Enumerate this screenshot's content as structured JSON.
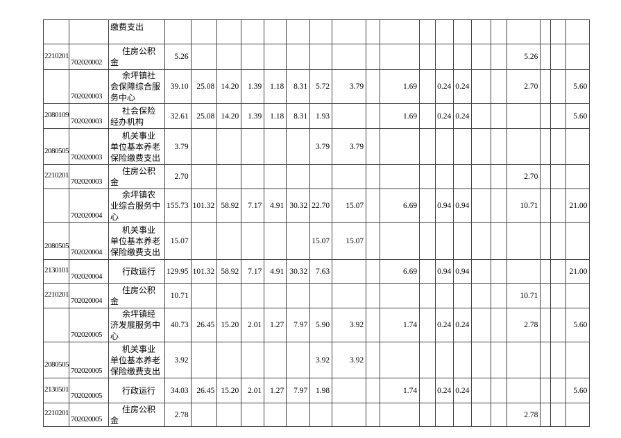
{
  "colors": {
    "page_bg": "#ffffff",
    "border": "#3f3f3f",
    "text": "#000000"
  },
  "table": {
    "rows": [
      {
        "func_code": "",
        "org_code": "",
        "name": "缴费支出",
        "continued": true,
        "values": [
          "",
          "",
          "",
          "",
          "",
          "",
          "",
          "",
          "",
          "",
          "",
          "",
          "",
          "",
          "",
          "",
          "",
          "",
          ""
        ]
      },
      {
        "func_code": "2210201",
        "org_code": "702020002",
        "name": "住房公积金",
        "continued": false,
        "values": [
          "5.26",
          "",
          "",
          "",
          "",
          "",
          "",
          "",
          "",
          "",
          "",
          "",
          "",
          "",
          "",
          "5.26",
          "",
          "",
          ""
        ]
      },
      {
        "func_code": "",
        "org_code": "702020003",
        "name": "余坪镇社会保障综合服务中心",
        "continued": false,
        "values": [
          "39.10",
          "25.08",
          "14.20",
          "1.39",
          "1.18",
          "8.31",
          "5.72",
          "3.79",
          "",
          "1.69",
          "",
          "0.24",
          "0.24",
          "",
          "",
          "2.70",
          "",
          "",
          "5.60"
        ]
      },
      {
        "func_code": "2080109",
        "org_code": "702020003",
        "name": "社会保险经办机构",
        "continued": false,
        "values": [
          "32.61",
          "25.08",
          "14.20",
          "1.39",
          "1.18",
          "8.31",
          "1.93",
          "",
          "",
          "1.69",
          "",
          "0.24",
          "0.24",
          "",
          "",
          "",
          "",
          "",
          "5.60"
        ]
      },
      {
        "func_code": "2080505",
        "org_code": "702020003",
        "name": "机关事业单位基本养老保险缴费支出",
        "continued": false,
        "values": [
          "3.79",
          "",
          "",
          "",
          "",
          "",
          "3.79",
          "3.79",
          "",
          "",
          "",
          "",
          "",
          "",
          "",
          "",
          "",
          "",
          ""
        ]
      },
      {
        "func_code": "2210201",
        "org_code": "702020003",
        "name": "住房公积金",
        "continued": false,
        "values": [
          "2.70",
          "",
          "",
          "",
          "",
          "",
          "",
          "",
          "",
          "",
          "",
          "",
          "",
          "",
          "",
          "2.70",
          "",
          "",
          ""
        ]
      },
      {
        "func_code": "",
        "org_code": "702020004",
        "name": "余坪镇农业综合服务中心",
        "continued": false,
        "values": [
          "155.73",
          "101.32",
          "58.92",
          "7.17",
          "4.91",
          "30.32",
          "22.70",
          "15.07",
          "",
          "6.69",
          "",
          "0.94",
          "0.94",
          "",
          "",
          "10.71",
          "",
          "",
          "21.00"
        ]
      },
      {
        "func_code": "2080505",
        "org_code": "702020004",
        "name": "机关事业单位基本养老保险缴费支出",
        "continued": false,
        "values": [
          "15.07",
          "",
          "",
          "",
          "",
          "",
          "15.07",
          "15.07",
          "",
          "",
          "",
          "",
          "",
          "",
          "",
          "",
          "",
          "",
          ""
        ]
      },
      {
        "func_code": "2130101",
        "org_code": "702020004",
        "name": "行政运行",
        "continued": false,
        "values": [
          "129.95",
          "101.32",
          "58.92",
          "7.17",
          "4.91",
          "30.32",
          "7.63",
          "",
          "",
          "6.69",
          "",
          "0.94",
          "0.94",
          "",
          "",
          "",
          "",
          "",
          "21.00"
        ]
      },
      {
        "func_code": "2210201",
        "org_code": "702020004",
        "name": "住房公积金",
        "continued": false,
        "values": [
          "10.71",
          "",
          "",
          "",
          "",
          "",
          "",
          "",
          "",
          "",
          "",
          "",
          "",
          "",
          "",
          "10.71",
          "",
          "",
          ""
        ]
      },
      {
        "func_code": "",
        "org_code": "702020005",
        "name": "余坪镇经济发展服务中心",
        "continued": false,
        "values": [
          "40.73",
          "26.45",
          "15.20",
          "2.01",
          "1.27",
          "7.97",
          "5.90",
          "3.92",
          "",
          "1.74",
          "",
          "0.24",
          "0.24",
          "",
          "",
          "2.78",
          "",
          "",
          "5.60"
        ]
      },
      {
        "func_code": "2080505",
        "org_code": "702020005",
        "name": "机关事业单位基本养老保险缴费支出",
        "continued": false,
        "values": [
          "3.92",
          "",
          "",
          "",
          "",
          "",
          "3.92",
          "3.92",
          "",
          "",
          "",
          "",
          "",
          "",
          "",
          "",
          "",
          "",
          ""
        ]
      },
      {
        "func_code": "2130501",
        "org_code": "702020005",
        "name": "行政运行",
        "continued": false,
        "values": [
          "34.03",
          "26.45",
          "15.20",
          "2.01",
          "1.27",
          "7.97",
          "1.98",
          "",
          "",
          "1.74",
          "",
          "0.24",
          "0.24",
          "",
          "",
          "",
          "",
          "",
          "5.60"
        ]
      },
      {
        "func_code": "2210201",
        "org_code": "702020005",
        "name": "住房公积金",
        "continued": false,
        "values": [
          "2.78",
          "",
          "",
          "",
          "",
          "",
          "",
          "",
          "",
          "",
          "",
          "",
          "",
          "",
          "",
          "2.78",
          "",
          "",
          ""
        ]
      }
    ]
  }
}
